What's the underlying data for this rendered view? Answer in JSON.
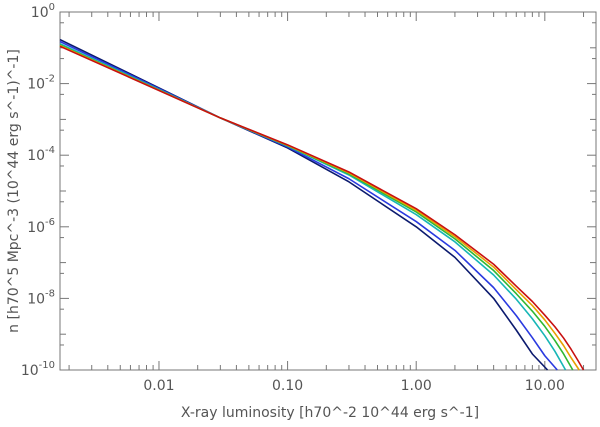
{
  "chart_data": {
    "type": "line",
    "xscale": "log",
    "yscale": "log",
    "xlim": [
      0.0017,
      25
    ],
    "ylim": [
      1e-10,
      1
    ],
    "xlabel": "X-ray luminosity  [h70^-2 10^44 erg s^-1]",
    "ylabel": "n [h70^5 Mpc^-3 (10^44 erg s^-1)^-1]",
    "grid": false,
    "x_ticks": [
      {
        "value": 0.01,
        "label": "0.01"
      },
      {
        "value": 0.1,
        "label": "0.10"
      },
      {
        "value": 1,
        "label": "1.00"
      },
      {
        "value": 10,
        "label": "10.00"
      }
    ],
    "y_ticks": [
      {
        "value": 1,
        "base": "10",
        "exp": "0"
      },
      {
        "value": 0.01,
        "base": "10",
        "exp": "-2"
      },
      {
        "value": 0.0001,
        "base": "10",
        "exp": "-4"
      },
      {
        "value": 1e-06,
        "base": "10",
        "exp": "-6"
      },
      {
        "value": 1e-08,
        "base": "10",
        "exp": "-8"
      },
      {
        "value": 1e-10,
        "base": "10",
        "exp": "-10"
      }
    ],
    "series": [
      {
        "color": "#0b1a6e",
        "x": [
          0.0017,
          0.03,
          0.1,
          0.3,
          1,
          2,
          4,
          6,
          8,
          10.5
        ],
        "y": [
          0.17,
          0.0011,
          0.00016,
          1.8e-05,
          1e-06,
          1.4e-07,
          1e-08,
          1.3e-09,
          2.8e-10,
          1e-10
        ]
      },
      {
        "color": "#2a3ae0",
        "x": [
          0.0017,
          0.03,
          0.1,
          0.3,
          1,
          2,
          4,
          6,
          8,
          10,
          12.5
        ],
        "y": [
          0.15,
          0.0011,
          0.00017,
          2.2e-05,
          1.4e-06,
          2.2e-07,
          2e-08,
          3.3e-09,
          8e-10,
          2.5e-10,
          1e-10
        ]
      },
      {
        "color": "#17b6b6",
        "x": [
          0.0017,
          0.03,
          0.1,
          0.3,
          1,
          2,
          4,
          6,
          8,
          10,
          12,
          14.5
        ],
        "y": [
          0.13,
          0.0011,
          0.00018,
          2.8e-05,
          2.2e-06,
          3.8e-07,
          4.5e-08,
          9.5e-09,
          2.7e-09,
          9e-10,
          3.3e-10,
          1e-10
        ]
      },
      {
        "color": "#30b832",
        "x": [
          0.0017,
          0.03,
          0.1,
          0.3,
          1,
          2,
          4,
          6,
          8,
          10,
          12,
          14,
          16.5
        ],
        "y": [
          0.12,
          0.0011,
          0.000185,
          3e-05,
          2.6e-06,
          4.6e-07,
          6e-08,
          1.35e-08,
          4.4e-09,
          1.65e-09,
          6.6e-10,
          2.8e-10,
          1e-10
        ]
      },
      {
        "color": "#e8a000",
        "x": [
          0.0017,
          0.03,
          0.1,
          0.3,
          1,
          2,
          4,
          6,
          8,
          10,
          12,
          14,
          16,
          18.5
        ],
        "y": [
          0.115,
          0.0011,
          0.00019,
          3.2e-05,
          2.9e-06,
          5.3e-07,
          7.5e-08,
          1.75e-08,
          6.3e-09,
          2.5e-09,
          1.05e-09,
          4.8e-10,
          2.2e-10,
          1e-10
        ]
      },
      {
        "color": "#c81010",
        "x": [
          0.0017,
          0.03,
          0.1,
          0.3,
          1,
          2,
          4,
          6,
          8,
          10,
          12,
          14,
          16,
          18,
          20
        ],
        "y": [
          0.11,
          0.0011,
          0.000195,
          3.4e-05,
          3.2e-06,
          6e-07,
          9e-08,
          2.2e-08,
          8.2e-09,
          3.4e-09,
          1.6e-09,
          7.8e-10,
          3.8e-10,
          1.9e-10,
          1e-10
        ]
      }
    ]
  }
}
